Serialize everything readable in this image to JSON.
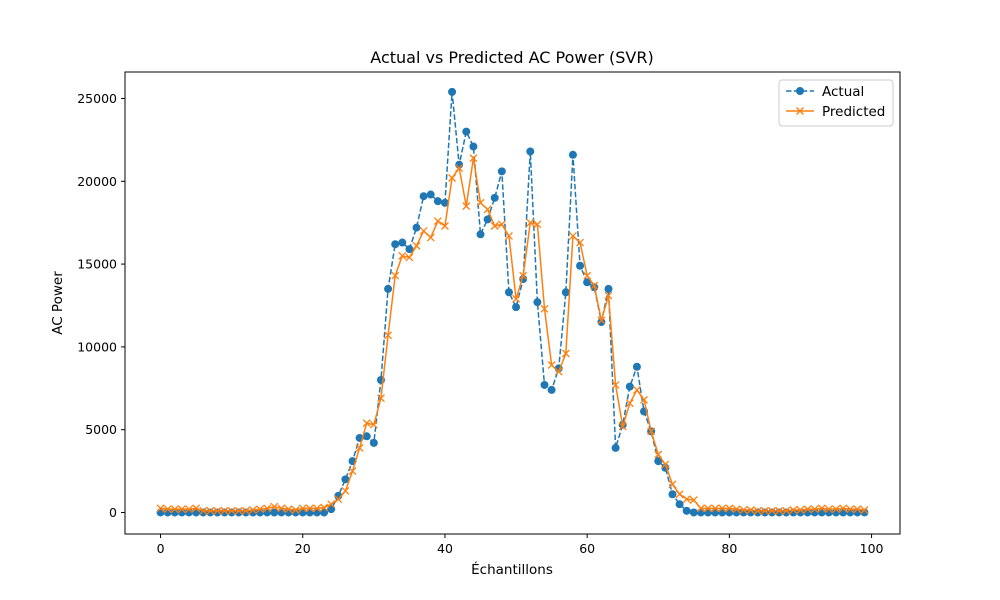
{
  "chart_data": {
    "type": "line",
    "title": "Actual vs Predicted AC Power (SVR)",
    "xlabel": "Échantillons",
    "ylabel": "AC Power",
    "xlim": [
      -5,
      104
    ],
    "ylim": [
      -1300,
      26600
    ],
    "xticks": [
      0,
      20,
      40,
      60,
      80,
      100
    ],
    "yticks": [
      0,
      5000,
      10000,
      15000,
      20000,
      25000
    ],
    "grid": false,
    "legend_position": "top-right",
    "series": [
      {
        "name": "Actual",
        "color": "#1f77b4",
        "style": "dashed",
        "marker": "circle",
        "values": [
          0,
          0,
          0,
          0,
          0,
          0,
          0,
          0,
          0,
          0,
          0,
          0,
          0,
          0,
          0,
          0,
          0,
          0,
          0,
          0,
          0,
          0,
          0,
          0,
          200,
          1000,
          2000,
          3100,
          4500,
          4600,
          4200,
          8000,
          13500,
          16200,
          16300,
          15900,
          17200,
          19100,
          19200,
          18800,
          18700,
          25400,
          21000,
          23000,
          22100,
          16800,
          17700,
          19000,
          20600,
          13300,
          12400,
          14100,
          21800,
          12700,
          7700,
          7400,
          8700,
          13300,
          21600,
          14900,
          13900,
          13600,
          11500,
          13500,
          3900,
          5300,
          7600,
          8800,
          6100,
          4900,
          3100,
          2700,
          1100,
          500,
          100,
          0,
          0,
          0,
          0,
          0,
          0,
          0,
          0,
          0,
          0,
          0,
          0,
          0,
          0,
          0,
          0,
          0,
          0,
          0,
          0,
          0,
          0,
          0,
          0,
          0
        ]
      },
      {
        "name": "Predicted",
        "color": "#ff7f0e",
        "style": "solid",
        "marker": "x",
        "values": [
          250,
          200,
          200,
          200,
          200,
          250,
          100,
          100,
          100,
          100,
          100,
          100,
          100,
          150,
          200,
          250,
          350,
          250,
          200,
          150,
          250,
          250,
          250,
          300,
          500,
          800,
          1300,
          2500,
          3900,
          5400,
          5300,
          6900,
          10700,
          14300,
          15500,
          15400,
          16100,
          17000,
          16600,
          17600,
          17300,
          20200,
          20800,
          18500,
          21400,
          18700,
          18300,
          17300,
          17400,
          16700,
          12900,
          14300,
          17500,
          17400,
          12300,
          8900,
          8500,
          9600,
          16700,
          16300,
          14300,
          13700,
          11600,
          13100,
          7700,
          5200,
          6600,
          7400,
          6800,
          4900,
          3500,
          2900,
          1700,
          1100,
          800,
          750,
          250,
          250,
          250,
          250,
          250,
          200,
          150,
          150,
          100,
          100,
          100,
          100,
          100,
          150,
          150,
          200,
          200,
          250,
          200,
          200,
          250,
          200,
          200,
          150
        ]
      }
    ]
  }
}
